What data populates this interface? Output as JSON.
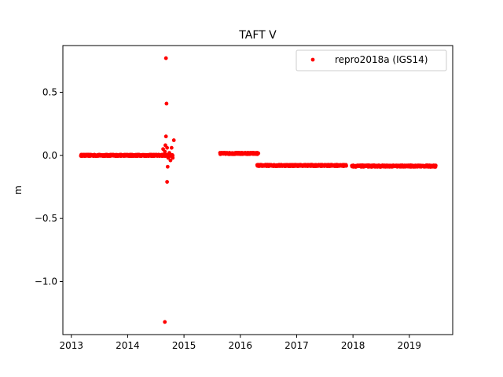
{
  "chart_data": {
    "type": "scatter",
    "title": "TAFT V",
    "xlabel": "",
    "ylabel": "m",
    "xlim": [
      2012.85,
      2019.77
    ],
    "ylim": [
      -1.42,
      0.87
    ],
    "xticks": [
      2013,
      2014,
      2015,
      2016,
      2017,
      2018,
      2019
    ],
    "xtick_labels": [
      "2013",
      "2014",
      "2015",
      "2016",
      "2017",
      "2018",
      "2019"
    ],
    "yticks": [
      0.5,
      0.0,
      -0.5,
      -1.0
    ],
    "ytick_labels": [
      "0.5",
      "0.0",
      "−0.5",
      "−1.0"
    ],
    "grid": false,
    "legend": {
      "position": "upper-right"
    },
    "colors": {
      "series": "#ff0000"
    },
    "series": [
      {
        "name": "repro2018a (IGS14)",
        "marker": "dot",
        "segments": [
          {
            "x_start": 2013.17,
            "x_end": 2014.8,
            "y": 0.0,
            "noise": 0.006
          },
          {
            "x_start": 2015.64,
            "x_end": 2016.32,
            "y": 0.015,
            "noise": 0.006
          },
          {
            "x_start": 2016.3,
            "x_end": 2017.88,
            "y": -0.08,
            "noise": 0.006
          },
          {
            "x_start": 2017.98,
            "x_end": 2019.47,
            "y": -0.085,
            "noise": 0.006
          }
        ],
        "points": [
          {
            "x": 2014.68,
            "y": 0.77
          },
          {
            "x": 2014.69,
            "y": 0.41
          },
          {
            "x": 2014.68,
            "y": 0.15
          },
          {
            "x": 2014.82,
            "y": 0.12
          },
          {
            "x": 2014.67,
            "y": 0.08
          },
          {
            "x": 2014.63,
            "y": 0.05
          },
          {
            "x": 2014.7,
            "y": 0.06
          },
          {
            "x": 2014.78,
            "y": 0.06
          },
          {
            "x": 2014.66,
            "y": 0.03
          },
          {
            "x": 2014.74,
            "y": 0.02
          },
          {
            "x": 2014.72,
            "y": -0.02
          },
          {
            "x": 2014.8,
            "y": -0.02
          },
          {
            "x": 2014.76,
            "y": -0.04
          },
          {
            "x": 2014.71,
            "y": -0.09
          },
          {
            "x": 2014.7,
            "y": -0.21
          },
          {
            "x": 2014.66,
            "y": -1.32
          }
        ]
      }
    ]
  }
}
